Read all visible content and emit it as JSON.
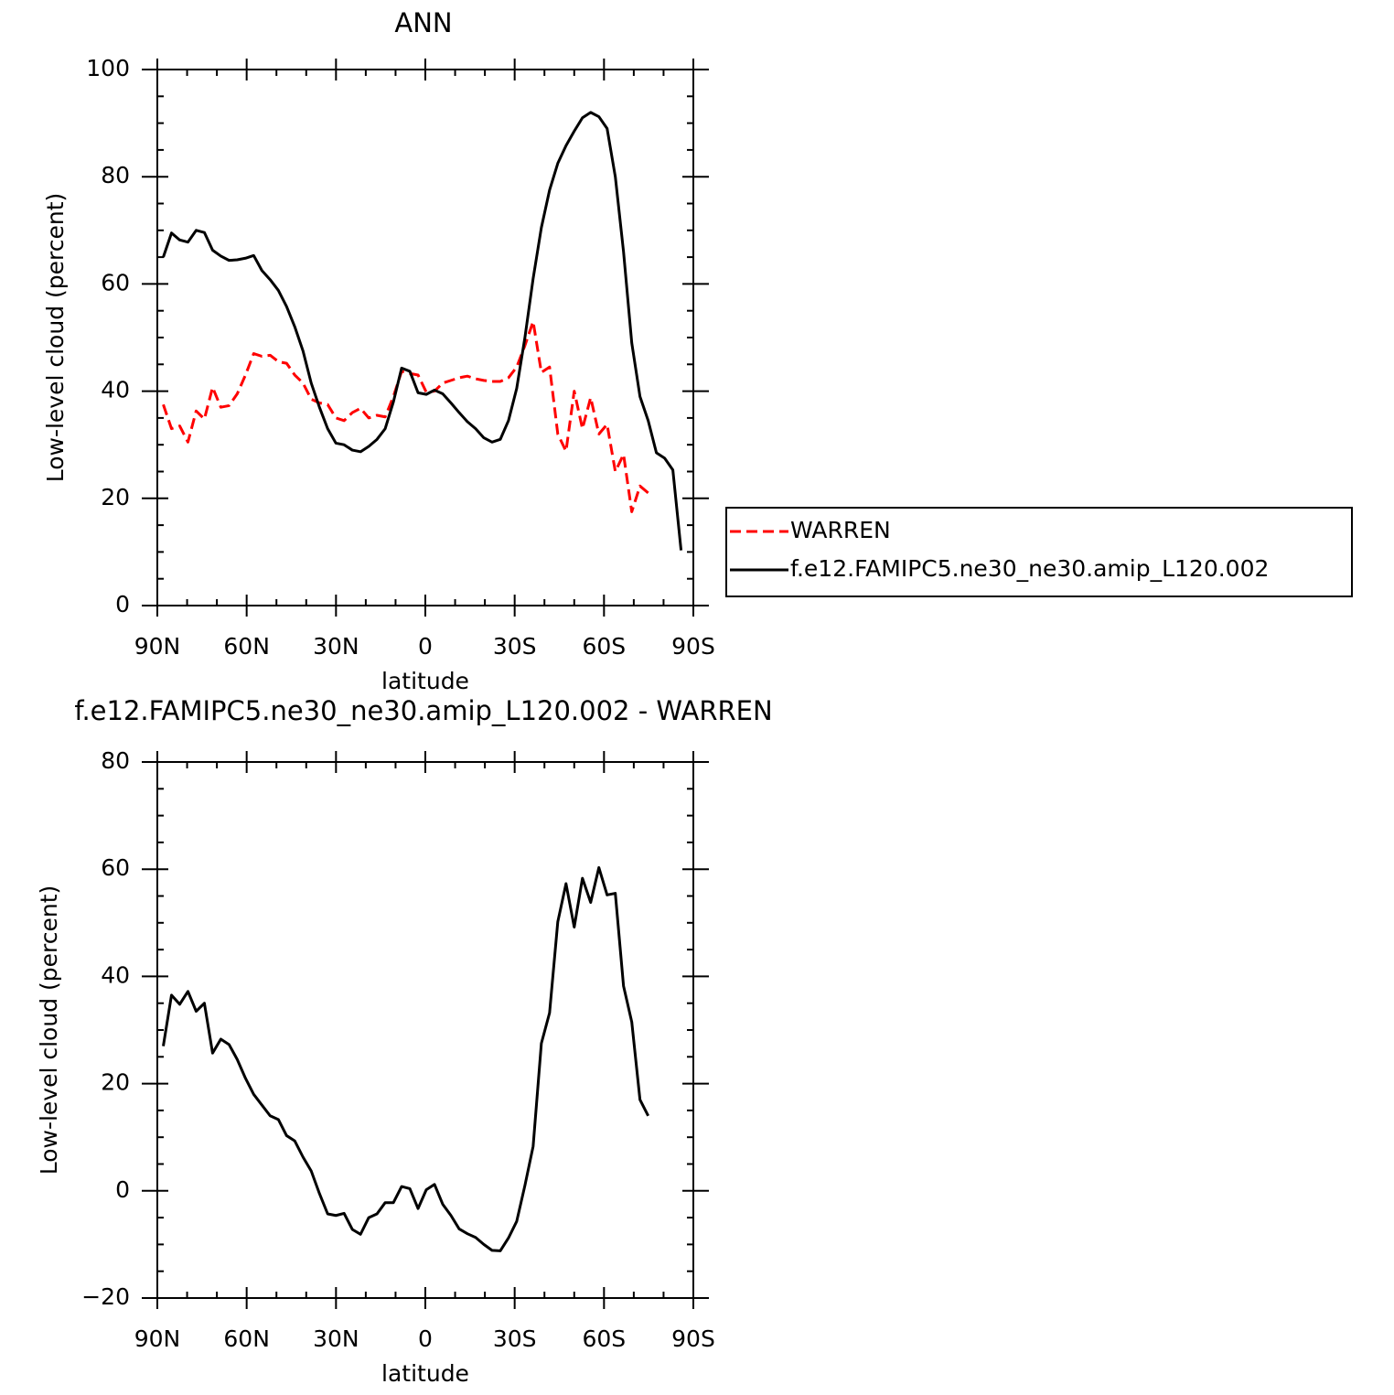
{
  "chart_data": [
    {
      "type": "line",
      "title": "ANN",
      "xlabel": "latitude",
      "ylabel": "Low-level cloud (percent)",
      "x": [
        88,
        85.24,
        82.48,
        79.72,
        76.96,
        74.2,
        71.44,
        68.68,
        65.92,
        63.16,
        60.4,
        57.64,
        54.88,
        52.12,
        49.36,
        46.6,
        43.84,
        41.08,
        38.32,
        35.56,
        32.8,
        30.04,
        27.28,
        24.52,
        21.76,
        19,
        16.24,
        13.48,
        10.72,
        7.96,
        5.2,
        2.44,
        -0.32,
        -3.08,
        -5.84,
        -8.6,
        -11.36,
        -14.12,
        -16.88,
        -19.64,
        -22.4,
        -25.16,
        -27.92,
        -30.68,
        -33.44,
        -36.2,
        -38.96,
        -41.72,
        -44.48,
        -47.24,
        -50,
        -52.76,
        -55.52,
        -58.28,
        -61.04,
        -63.8,
        -66.56,
        -69.32,
        -72.08,
        -74.84,
        -77.6,
        -80.36,
        -83.12,
        -85.88
      ],
      "series": [
        {
          "name": "WARREN",
          "color": "#ff0000",
          "dash": true,
          "values": [
            37.5,
            33,
            33.5,
            30.5,
            36.3,
            34.8,
            40.7,
            37,
            37.3,
            39.5,
            43,
            47,
            46.5,
            46.7,
            45.5,
            45.2,
            43,
            41.5,
            38.5,
            37.8,
            37.5,
            35,
            34.5,
            36,
            36.8,
            35,
            35.5,
            35.2,
            39,
            43.7,
            43.3,
            43,
            39.8,
            40,
            41.5,
            42,
            42.5,
            42.8,
            42.3,
            42,
            41.8,
            41.8,
            42.5,
            44.5,
            48.5,
            53,
            43.5,
            44.5,
            32,
            28.8,
            40,
            33,
            38.8,
            32,
            33.8,
            25,
            28.2,
            17.5,
            22.3,
            21,
            null,
            null,
            null,
            null
          ]
        },
        {
          "name": "f.e12.FAMIPC5.ne30_ne30.amip_L120.002",
          "color": "#000000",
          "dash": false,
          "values": [
            65,
            69.5,
            68.2,
            67.8,
            70,
            69.6,
            66.3,
            65.2,
            64.4,
            64.5,
            64.8,
            65.3,
            62.5,
            60.8,
            58.8,
            55.8,
            52,
            47.5,
            41.5,
            37,
            33,
            30.3,
            30,
            29,
            28.7,
            29.7,
            31,
            33,
            38,
            44.3,
            43.7,
            39.7,
            39.4,
            40.2,
            39.5,
            37.8,
            36,
            34.3,
            33,
            31.3,
            30.5,
            31,
            34.5,
            40.5,
            50,
            61,
            70.5,
            77.5,
            82.5,
            85.8,
            88.5,
            91,
            92,
            91.2,
            89,
            80,
            66,
            49,
            39,
            34.5,
            28.5,
            27.5,
            25.3,
            10.3
          ]
        }
      ],
      "xlim": [
        90,
        -90
      ],
      "xticks": [
        {
          "value": 90,
          "label": "90N"
        },
        {
          "value": 60,
          "label": "60N"
        },
        {
          "value": 30,
          "label": "30N"
        },
        0,
        {
          "value": -30,
          "label": "30S"
        },
        {
          "value": -60,
          "label": "60S"
        },
        {
          "value": -90,
          "label": "90S"
        }
      ],
      "ylim": [
        0,
        100
      ],
      "yticks": [
        0,
        20,
        40,
        60,
        80,
        100
      ]
    },
    {
      "type": "line",
      "title": "f.e12.FAMIPC5.ne30_ne30.amip_L120.002 - WARREN",
      "xlabel": "latitude",
      "ylabel": "Low-level cloud (percent)",
      "x": [
        88,
        85.24,
        82.48,
        79.72,
        76.96,
        74.2,
        71.44,
        68.68,
        65.92,
        63.16,
        60.4,
        57.64,
        54.88,
        52.12,
        49.36,
        46.6,
        43.84,
        41.08,
        38.32,
        35.56,
        32.8,
        30.04,
        27.28,
        24.52,
        21.76,
        19,
        16.24,
        13.48,
        10.72,
        7.96,
        5.2,
        2.44,
        -0.32,
        -3.08,
        -5.84,
        -8.6,
        -11.36,
        -14.12,
        -16.88,
        -19.64,
        -22.4,
        -25.16,
        -27.92,
        -30.68,
        -33.44,
        -36.2,
        -38.96,
        -41.72,
        -44.48,
        -47.24,
        -50,
        -52.76,
        -55.52,
        -58.28,
        -61.04,
        -63.8,
        -66.56,
        -69.32,
        -72.08,
        -74.84
      ],
      "series": [
        {
          "color": "#000000",
          "dash": false,
          "values": [
            27,
            36.5,
            34.8,
            37.2,
            33.5,
            35,
            25.7,
            28.3,
            27.3,
            24.5,
            21,
            18,
            16,
            14,
            13.3,
            10.3,
            9.3,
            6.3,
            3.7,
            -0.5,
            -4.3,
            -4.6,
            -4.2,
            -7.2,
            -8.1,
            -5,
            -4.3,
            -2.2,
            -2.2,
            0.8,
            0.4,
            -3.3,
            0.2,
            1.2,
            -2.5,
            -4.6,
            -7.1,
            -8,
            -8.7,
            -10,
            -11.1,
            -11.2,
            -8.8,
            -5.7,
            1,
            8.3,
            27.5,
            33.2,
            50.2,
            57.3,
            49.2,
            58.3,
            53.8,
            60.3,
            55.2,
            55.5,
            38.2,
            31.5,
            17,
            14
          ]
        }
      ],
      "xlim": [
        90,
        -90
      ],
      "xticks": [
        {
          "value": 90,
          "label": "90N"
        },
        {
          "value": 60,
          "label": "60N"
        },
        {
          "value": 30,
          "label": "30N"
        },
        0,
        {
          "value": -30,
          "label": "30S"
        },
        {
          "value": -60,
          "label": "60S"
        },
        {
          "value": -90,
          "label": "90S"
        }
      ],
      "ylim": [
        -20,
        80
      ],
      "yticks": [
        {
          "value": -20,
          "label": "−20"
        },
        0,
        20,
        40,
        60,
        80
      ]
    }
  ]
}
